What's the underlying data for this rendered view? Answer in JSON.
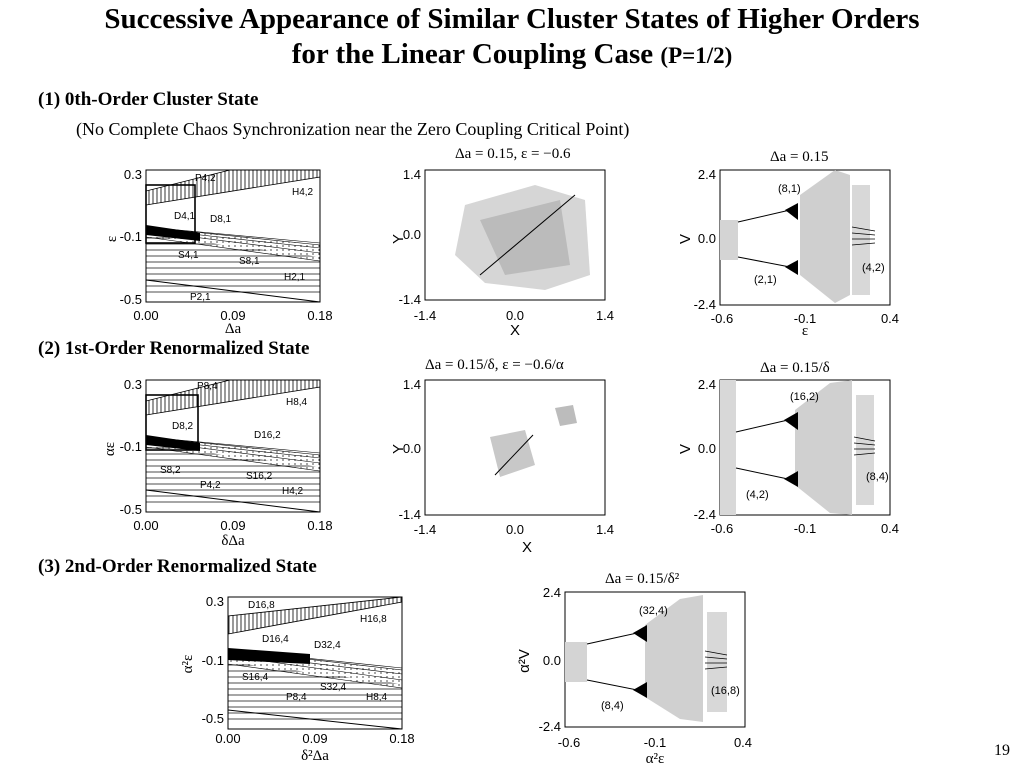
{
  "slide": {
    "title_line1": "Successive Appearance of Similar Cluster States of Higher Orders",
    "title_line2": "for the Linear Coupling Case",
    "title_param": "(P=1/2)",
    "page_number": "19"
  },
  "sections": [
    {
      "heading": "(1) 0th-Order Cluster State",
      "note": "(No Complete Chaos Synchronization near the Zero Coupling Critical Point)"
    },
    {
      "heading": "(2) 1st-Order Renormalized State"
    },
    {
      "heading": "(3) 2nd-Order Renormalized State"
    }
  ],
  "panels": {
    "row1": {
      "diagram": {
        "yticks": [
          "0.3",
          "-0.1",
          "-0.5"
        ],
        "xticks": [
          "0.00",
          "0.09",
          "0.18"
        ],
        "ylabel": "ε",
        "xlabel": "Δa",
        "labels": [
          "P4,2",
          "H4,2",
          "D4,1",
          "D8,1",
          "S4,1",
          "S8,1",
          "H2,1",
          "P2,1"
        ]
      },
      "attractor": {
        "title": "Δa = 0.15, ε = −0.6",
        "yticks": [
          "1.4",
          "0.0",
          "-1.4"
        ],
        "xticks": [
          "-1.4",
          "0.0",
          "1.4"
        ],
        "ylabel": "Y",
        "xlabel": "X"
      },
      "bifurcation": {
        "title": "Δa = 0.15",
        "yticks": [
          "2.4",
          "0.0",
          "-2.4"
        ],
        "xticks": [
          "-0.6",
          "-0.1",
          "0.4"
        ],
        "ylabel": "V",
        "xlabel": "ε",
        "labels": [
          "(8,1)",
          "(2,1)",
          "(4,2)"
        ]
      }
    },
    "row2": {
      "diagram": {
        "yticks": [
          "0.3",
          "-0.1",
          "-0.5"
        ],
        "xticks": [
          "0.00",
          "0.09",
          "0.18"
        ],
        "ylabel": "αε",
        "xlabel": "δΔa",
        "labels": [
          "P8,4",
          "H8,4",
          "D8,2",
          "D16,2",
          "S8,2",
          "S16,2",
          "P4,2",
          "H4,2"
        ]
      },
      "attractor": {
        "title": "Δa = 0.15/δ, ε = −0.6/α",
        "yticks": [
          "1.4",
          "0.0",
          "-1.4"
        ],
        "xticks": [
          "-1.4",
          "0.0",
          "1.4"
        ],
        "ylabel": "Y",
        "xlabel": "X"
      },
      "bifurcation": {
        "title": "Δa = 0.15/δ",
        "yticks": [
          "2.4",
          "0.0",
          "-2.4"
        ],
        "xticks": [
          "-0.6",
          "-0.1",
          "0.4"
        ],
        "ylabel": "V",
        "xlabel": "",
        "labels": [
          "(16,2)",
          "(4,2)",
          "(8,4)"
        ]
      }
    },
    "row3": {
      "diagram": {
        "yticks": [
          "0.3",
          "-0.1",
          "-0.5"
        ],
        "xticks": [
          "0.00",
          "0.09",
          "0.18"
        ],
        "ylabel": "α²ε",
        "xlabel": "δ²Δa",
        "labels": [
          "D16,8",
          "H16,8",
          "D16,4",
          "D32,4",
          "S16,4",
          "S32,4",
          "P8,4",
          "H8,4"
        ]
      },
      "bifurcation": {
        "title": "Δa = 0.15/δ²",
        "yticks": [
          "2.4",
          "0.0",
          "-2.4"
        ],
        "xticks": [
          "-0.6",
          "-0.1",
          "0.4"
        ],
        "ylabel": "α²V",
        "xlabel": "α²ε",
        "labels": [
          "(32,4)",
          "(8,4)",
          "(16,8)"
        ]
      }
    }
  }
}
